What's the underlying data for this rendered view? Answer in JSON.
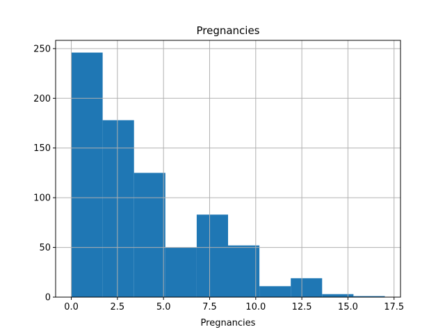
{
  "chart_data": {
    "type": "bar",
    "title": "Pregnancies",
    "xlabel": "Pregnancies",
    "ylabel": "",
    "bin_edges": [
      0,
      1.7,
      3.4,
      5.1,
      6.8,
      8.5,
      10.2,
      11.9,
      13.6,
      15.3,
      17.0
    ],
    "values": [
      246,
      178,
      125,
      50,
      83,
      52,
      11,
      19,
      3,
      1
    ],
    "xlim": [
      -0.85,
      17.85
    ],
    "ylim": [
      0,
      258.3
    ],
    "xticks": [
      0.0,
      2.5,
      5.0,
      7.5,
      10.0,
      12.5,
      15.0,
      17.5
    ],
    "xtick_labels": [
      "0.0",
      "2.5",
      "5.0",
      "7.5",
      "10.0",
      "12.5",
      "15.0",
      "17.5"
    ],
    "yticks": [
      0,
      50,
      100,
      150,
      200,
      250
    ],
    "ytick_labels": [
      "0",
      "50",
      "100",
      "150",
      "200",
      "250"
    ],
    "grid": true,
    "bar_color": "#1f77b4",
    "grid_color": "#b0b0b0"
  }
}
